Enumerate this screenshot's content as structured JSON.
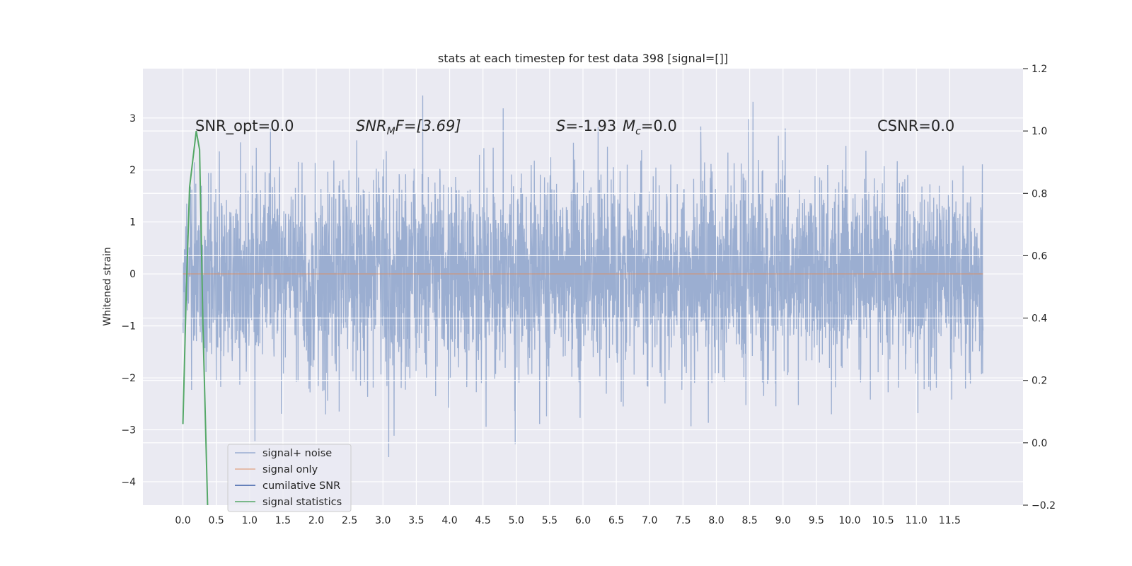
{
  "chart_data": {
    "type": "line",
    "title": "stats at each timestep for test data 398 [signal=[]]",
    "ylabel": "Whitened strain",
    "ylabel_right": "",
    "xlim": [
      -0.6,
      12.6
    ],
    "ylim": [
      -4.45,
      3.95
    ],
    "ylim_right": [
      -0.2,
      1.2
    ],
    "x_ticks": [
      "0.0",
      "0.5",
      "1.0",
      "1.5",
      "2.0",
      "2.5",
      "3.0",
      "3.5",
      "4.0",
      "4.5",
      "5.0",
      "5.5",
      "6.0",
      "6.5",
      "7.0",
      "7.5",
      "8.0",
      "8.5",
      "9.0",
      "9.5",
      "10.0",
      "10.5",
      "11.0",
      "11.5"
    ],
    "y_ticks_left": [
      3,
      2,
      1,
      0,
      -1,
      -2,
      -3,
      -4
    ],
    "y_ticks_left_labels": [
      "3",
      "2",
      "1",
      "0",
      "−1",
      "−2",
      "−3",
      "−4"
    ],
    "y_ticks_right": [
      1.2,
      1.0,
      0.8,
      0.6,
      0.4,
      0.2,
      0.0,
      -0.2
    ],
    "y_ticks_right_labels": [
      "1.2",
      "1.0",
      "0.8",
      "0.6",
      "0.4",
      "0.2",
      "0.0",
      "−0.2"
    ],
    "grid": true,
    "legend_position": "lower-left",
    "noise": {
      "x_range": [
        0.0,
        12.0
      ],
      "sigma": 0.95,
      "clip": [
        -4.1,
        3.6
      ]
    },
    "series": [
      {
        "name": "signal+ noise",
        "color": "#4c72b0",
        "axis": "left"
      },
      {
        "name": "signal only",
        "color": "#dd8452",
        "axis": "left",
        "x": [
          0.0,
          12.0
        ],
        "y": [
          0.0,
          0.0
        ]
      },
      {
        "name": "cumilative SNR",
        "color": "#3a5ea8",
        "axis": "right",
        "x": [],
        "y": []
      },
      {
        "name": "signal statistics",
        "color": "#55a868",
        "axis": "right",
        "x": [
          0.0,
          0.05,
          0.1,
          0.15,
          0.2,
          0.25,
          0.3,
          0.37
        ],
        "y": [
          0.06,
          0.48,
          0.82,
          0.91,
          1.0,
          0.94,
          0.38,
          -0.2
        ]
      }
    ],
    "annotations": {
      "snr_opt": "SNR_opt=0.0",
      "snr_mf_main": "SNR",
      "snr_mf_sub": "M",
      "snr_mf_rest": "F=[3.69]",
      "s_var": "S",
      "s_rest": "=-1.93",
      "mc_var": "M",
      "mc_sub": "c",
      "mc_rest": "=0.0",
      "csnr": "CSNR=0.0"
    }
  }
}
